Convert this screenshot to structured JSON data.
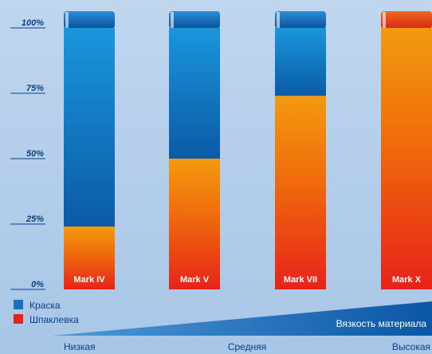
{
  "chart_data": {
    "type": "bar",
    "stacked": true,
    "percent": true,
    "categories": [
      "Mark IV",
      "Mark V",
      "Mark VII",
      "Mark X"
    ],
    "series": [
      {
        "name": "Шпаклевка",
        "color": "#e8221a",
        "values": [
          24,
          50,
          74,
          100
        ]
      },
      {
        "name": "Краска",
        "color": "#1a6fbf",
        "values": [
          76,
          50,
          26,
          0
        ]
      }
    ],
    "ylim": [
      0,
      100
    ],
    "yticks": [
      "0%",
      "25%",
      "50%",
      "75%",
      "100%"
    ],
    "legend_position": "bottom-left",
    "grid": false
  },
  "scale": {
    "axis_label": "Вязкость материала",
    "levels": [
      "Низкая",
      "Средняя",
      "Высокая"
    ]
  }
}
